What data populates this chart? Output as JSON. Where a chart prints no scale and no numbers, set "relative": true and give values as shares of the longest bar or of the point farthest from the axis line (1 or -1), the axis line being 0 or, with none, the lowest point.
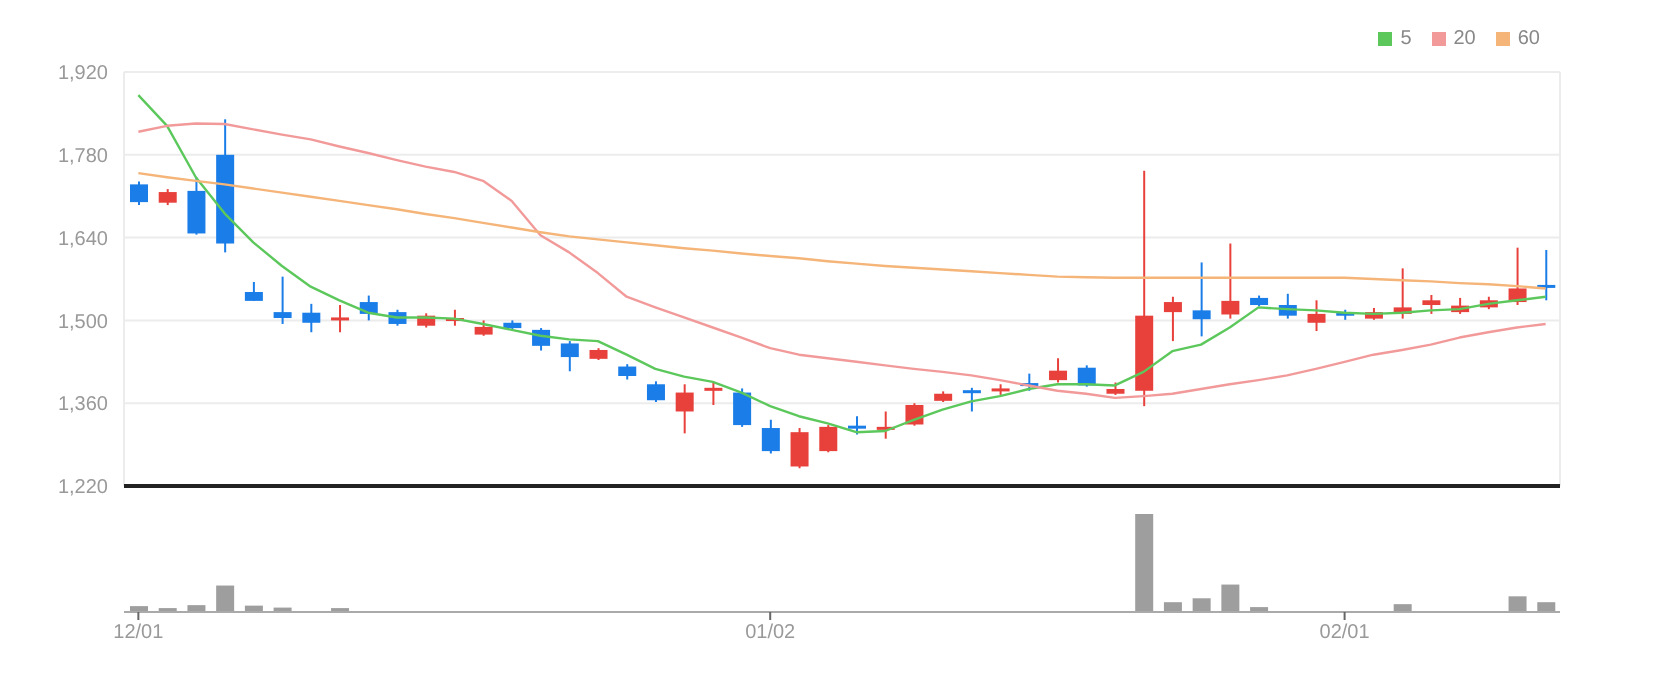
{
  "chart_data": [
    {
      "type": "candlestick",
      "categories": [
        null,
        null,
        null,
        null,
        null,
        null,
        null,
        null,
        null,
        null,
        null,
        null,
        null,
        null,
        null,
        null,
        null,
        null,
        null,
        null,
        null,
        null,
        null,
        null,
        null,
        null,
        null,
        null,
        null,
        null,
        null,
        null,
        null,
        null,
        null,
        null,
        null,
        null,
        null,
        null,
        null,
        null,
        null,
        null,
        null,
        null,
        null,
        null,
        null,
        null
      ],
      "ohlc": [
        [
          1730,
          1735,
          1695,
          1700
        ],
        [
          1699,
          1722,
          1695,
          1717
        ],
        [
          1719,
          1742,
          1645,
          1647
        ],
        [
          1780,
          1840,
          1615,
          1630
        ],
        [
          1548,
          1565,
          1533,
          1533
        ],
        [
          1514,
          1574,
          1494,
          1504
        ],
        [
          1513,
          1528,
          1480,
          1496
        ],
        [
          1500,
          1526,
          1480,
          1505
        ],
        [
          1531,
          1542,
          1500,
          1511
        ],
        [
          1514,
          1518,
          1491,
          1494
        ],
        [
          1491,
          1512,
          1488,
          1508
        ],
        [
          1500,
          1518,
          1491,
          1504
        ],
        [
          1476,
          1500,
          1474,
          1489
        ],
        [
          1496,
          1500,
          1485,
          1487
        ],
        [
          1484,
          1487,
          1449,
          1457
        ],
        [
          1461,
          1465,
          1414,
          1438
        ],
        [
          1435,
          1453,
          1433,
          1450
        ],
        [
          1422,
          1426,
          1400,
          1406
        ],
        [
          1392,
          1397,
          1362,
          1365
        ],
        [
          1346,
          1392,
          1309,
          1378
        ],
        [
          1382,
          1396,
          1357,
          1386
        ],
        [
          1378,
          1385,
          1320,
          1323
        ],
        [
          1318,
          1332,
          1275,
          1279
        ],
        [
          1253,
          1318,
          1250,
          1311
        ],
        [
          1279,
          1323,
          1277,
          1320
        ],
        [
          1322,
          1338,
          1307,
          1318
        ],
        [
          1316,
          1346,
          1300,
          1320
        ],
        [
          1324,
          1360,
          1322,
          1357
        ],
        [
          1364,
          1380,
          1362,
          1376
        ],
        [
          1382,
          1386,
          1346,
          1378
        ],
        [
          1381,
          1392,
          1374,
          1385
        ],
        [
          1394,
          1410,
          1381,
          1390
        ],
        [
          1399,
          1436,
          1395,
          1415
        ],
        [
          1420,
          1424,
          1388,
          1390
        ],
        [
          1376,
          1395,
          1374,
          1384
        ],
        [
          1381,
          1753,
          1355,
          1508
        ],
        [
          1514,
          1540,
          1465,
          1531
        ],
        [
          1517,
          1598,
          1473,
          1502
        ],
        [
          1510,
          1630,
          1503,
          1533
        ],
        [
          1538,
          1542,
          1524,
          1526
        ],
        [
          1526,
          1545,
          1503,
          1508
        ],
        [
          1496,
          1534,
          1482,
          1511
        ],
        [
          1513,
          1518,
          1501,
          1509
        ],
        [
          1503,
          1521,
          1501,
          1514
        ],
        [
          1511,
          1588,
          1503,
          1522
        ],
        [
          1526,
          1543,
          1511,
          1534
        ],
        [
          1514,
          1538,
          1511,
          1525
        ],
        [
          1522,
          1540,
          1519,
          1534
        ],
        [
          1531,
          1623,
          1526,
          1554
        ],
        [
          1560,
          1619,
          1534,
          1555
        ]
      ],
      "colors": [
        "#1a7de8",
        "#e8413c",
        "#1a7de8",
        "#1a7de8",
        "#1a7de8",
        "#1a7de8",
        "#1a7de8",
        "#e8413c",
        "#1a7de8",
        "#1a7de8",
        "#e8413c",
        "#e8413c",
        "#e8413c",
        "#1a7de8",
        "#1a7de8",
        "#1a7de8",
        "#e8413c",
        "#1a7de8",
        "#1a7de8",
        "#e8413c",
        "#e8413c",
        "#1a7de8",
        "#1a7de8",
        "#e8413c",
        "#e8413c",
        "#1a7de8",
        "#e8413c",
        "#e8413c",
        "#e8413c",
        "#1a7de8",
        "#e8413c",
        "#1a7de8",
        "#e8413c",
        "#1a7de8",
        "#e8413c",
        "#e8413c",
        "#e8413c",
        "#1a7de8",
        "#e8413c",
        "#1a7de8",
        "#1a7de8",
        "#e8413c",
        "#1a7de8",
        "#e8413c",
        "#e8413c",
        "#e8413c",
        "#e8413c",
        "#e8413c",
        "#e8413c",
        "#1a7de8"
      ],
      "series": [
        {
          "type": "line",
          "name": "5",
          "color": "#5cc85c",
          "values": [
            1881,
            1829,
            1742,
            1681,
            1632,
            1592,
            1557,
            1534,
            1513,
            1505,
            1505,
            1503,
            1494,
            1484,
            1474,
            1468,
            1465,
            1442,
            1418,
            1405,
            1396,
            1378,
            1355,
            1338,
            1326,
            1311,
            1313,
            1332,
            1349,
            1363,
            1372,
            1384,
            1392,
            1392,
            1390,
            1413,
            1448,
            1459,
            1488,
            1522,
            1519,
            1517,
            1513,
            1511,
            1513,
            1517,
            1519,
            1528,
            1534,
            1540
          ]
        },
        {
          "type": "line",
          "name": "20",
          "color": "#f29a9a",
          "values": [
            1819,
            1829,
            1833,
            1832,
            1823,
            1814,
            1806,
            1794,
            1783,
            1771,
            1760,
            1751,
            1736,
            1702,
            1644,
            1615,
            1580,
            1540,
            1522,
            1505,
            1488,
            1471,
            1453,
            1442,
            1436,
            1430,
            1424,
            1418,
            1413,
            1407,
            1399,
            1390,
            1381,
            1376,
            1369,
            1372,
            1376,
            1384,
            1392,
            1399,
            1407,
            1418,
            1430,
            1442,
            1450,
            1459,
            1471,
            1480,
            1488,
            1494
          ]
        },
        {
          "type": "line",
          "name": "60",
          "color": "#f5b478",
          "values": [
            1749,
            1742,
            1736,
            1730,
            1723,
            1716,
            1709,
            1702,
            1695,
            1688,
            1680,
            1673,
            1665,
            1657,
            1649,
            1642,
            1637,
            1632,
            1627,
            1622,
            1618,
            1613,
            1609,
            1605,
            1600,
            1596,
            1592,
            1589,
            1586,
            1583,
            1580,
            1577,
            1574,
            1573,
            1572,
            1572,
            1572,
            1572,
            1572,
            1572,
            1572,
            1572,
            1572,
            1570,
            1568,
            1566,
            1563,
            1561,
            1558,
            1554
          ]
        }
      ],
      "ylim": [
        1220,
        1920
      ],
      "yticks": [
        {
          "value": 1220,
          "label": "1,220"
        },
        {
          "value": 1360,
          "label": "1,360"
        },
        {
          "value": 1500,
          "label": "1,500"
        },
        {
          "value": 1640,
          "label": "1,640"
        },
        {
          "value": 1780,
          "label": "1,780"
        },
        {
          "value": 1920,
          "label": "1,920"
        }
      ],
      "grid": true,
      "legend": "top right",
      "tick_labels": "y"
    },
    {
      "type": "bar",
      "categories": [
        "12/01",
        null,
        null,
        null,
        null,
        null,
        null,
        null,
        null,
        null,
        null,
        null,
        null,
        null,
        null,
        null,
        null,
        null,
        null,
        null,
        null,
        null,
        "01/02",
        null,
        null,
        null,
        null,
        null,
        null,
        null,
        null,
        null,
        null,
        null,
        null,
        null,
        null,
        null,
        null,
        null,
        null,
        null,
        "02/01",
        null,
        null,
        null,
        null,
        null,
        null,
        null
      ],
      "values": [
        0.06,
        0.04,
        0.07,
        0.27,
        0.065,
        0.045,
        0.01,
        0.04,
        0.01,
        0.01,
        0.01,
        0.01,
        0.01,
        0.01,
        0.01,
        0.01,
        0.01,
        0.01,
        0.01,
        0.01,
        0.01,
        0.01,
        0.01,
        0.01,
        0.01,
        0.01,
        0.01,
        0.01,
        0.01,
        0.01,
        0.01,
        0.01,
        0.01,
        0.01,
        0.01,
        1,
        0.1,
        0.14,
        0.28,
        0.05,
        0.01,
        0.01,
        0.01,
        0.01,
        0.08,
        0.01,
        0.01,
        0.01,
        0.16,
        0.1
      ],
      "color": "#9e9e9e",
      "relative": true,
      "tick_labels": "x"
    }
  ]
}
